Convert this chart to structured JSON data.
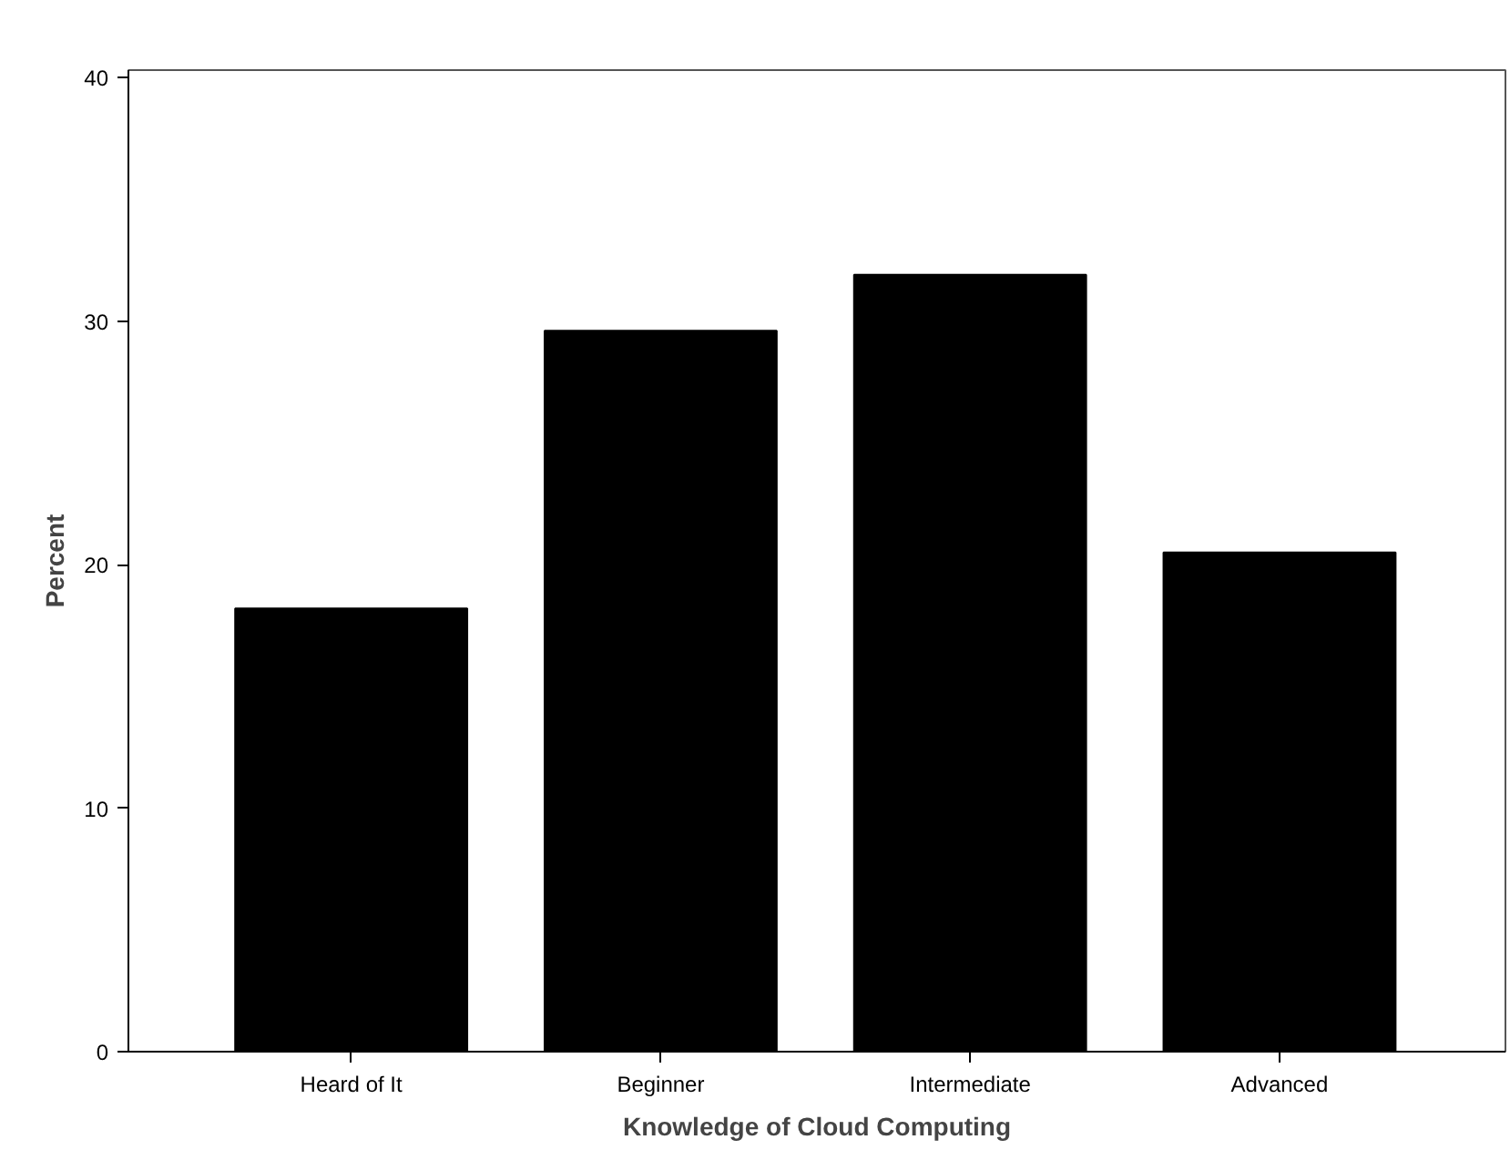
{
  "chart_data": {
    "type": "bar",
    "xlabel": "Knowledge of Cloud Computing",
    "ylabel": "Percent",
    "categories": [
      "Heard of It",
      "Beginner",
      "Intermediate",
      "Advanced"
    ],
    "values": [
      18.2,
      29.6,
      31.9,
      20.5
    ],
    "color": "#000000",
    "ylim": [
      0,
      40.3
    ],
    "yticks": [
      0,
      10,
      20,
      30,
      40
    ],
    "grid": false
  }
}
